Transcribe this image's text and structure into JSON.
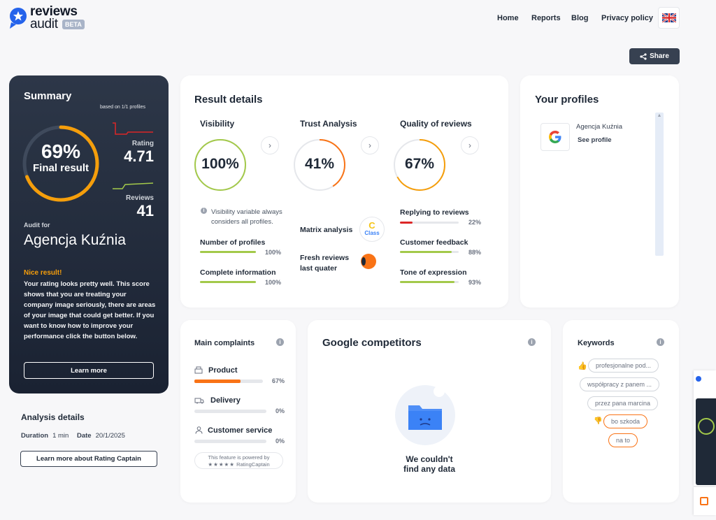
{
  "header": {
    "logo_line1": "reviews",
    "logo_line2": "audit",
    "beta": "BETA",
    "nav": [
      "Home",
      "Reports",
      "Blog",
      "Privacy policy"
    ],
    "share": "Share"
  },
  "summary": {
    "title": "Summary",
    "based_on": "based on 1/1 profiles",
    "final_pct": "69%",
    "final_pct_value": 69,
    "final_label": "Final result",
    "rating_label": "Rating",
    "rating_value": "4.71",
    "reviews_label": "Reviews",
    "reviews_value": "41",
    "audit_for": "Audit for",
    "company": "Agencja Kuźnia",
    "nice": "Nice result!",
    "description": "Your rating looks pretty well. This score shows that you are treating your company image seriously, there are areas of your image that could get better. If you want to know how to improve your performance click the button below.",
    "learn_more": "Learn more"
  },
  "analysis": {
    "title": "Analysis details",
    "duration_label": "Duration",
    "duration_value": "1 min",
    "date_label": "Date",
    "date_value": "20/1/2025",
    "learn_more_rc": "Learn more about Rating Captain"
  },
  "result_details": {
    "title": "Result details",
    "visibility": {
      "title": "Visibility",
      "value": "100%",
      "fraction": 1.0,
      "note": "Visibility variable always considers all profiles.",
      "metrics": [
        {
          "label": "Number of profiles",
          "pct": "100%",
          "fraction": 1.0
        },
        {
          "label": "Complete information",
          "pct": "100%",
          "fraction": 1.0
        }
      ]
    },
    "trust": {
      "title": "Trust Analysis",
      "value": "41%",
      "fraction": 0.41,
      "matrix_label": "Matrix analysis",
      "matrix_class": "C",
      "matrix_class_label": "Class",
      "fresh_label": "Fresh reviews last quater"
    },
    "quality": {
      "title": "Quality of reviews",
      "value": "67%",
      "fraction": 0.67,
      "metrics": [
        {
          "label": "Replying to reviews",
          "pct": "22%",
          "fraction": 0.22
        },
        {
          "label": "Customer feedback",
          "pct": "88%",
          "fraction": 0.88
        },
        {
          "label": "Tone of expression",
          "pct": "93%",
          "fraction": 0.93
        }
      ]
    }
  },
  "profiles": {
    "title": "Your profiles",
    "items": [
      {
        "name": "Agencja Kuźnia",
        "link": "See profile"
      }
    ]
  },
  "complaints": {
    "title": "Main complaints",
    "items": [
      {
        "label": "Product",
        "pct": "67%",
        "fraction": 0.67
      },
      {
        "label": "Delivery",
        "pct": "0%",
        "fraction": 0
      },
      {
        "label": "Customer service",
        "pct": "0%",
        "fraction": 0
      }
    ],
    "powered_line1": "This feature is powered by",
    "powered_line2": "RatingCaptain"
  },
  "competitors": {
    "title": "Google competitors",
    "empty_line1": "We couldn't",
    "empty_line2": "find any data"
  },
  "keywords": {
    "title": "Keywords",
    "positive": [
      "profesjonalne pod...",
      "współpracy z panem ...",
      "przez pana marcina"
    ],
    "negative": [
      "bo szkoda",
      "na to"
    ]
  },
  "colors": {
    "accent_dark": "#374151",
    "green": "#a3c94a",
    "orange": "#f97316",
    "red": "#dc2626",
    "blue": "#3b82f6"
  }
}
